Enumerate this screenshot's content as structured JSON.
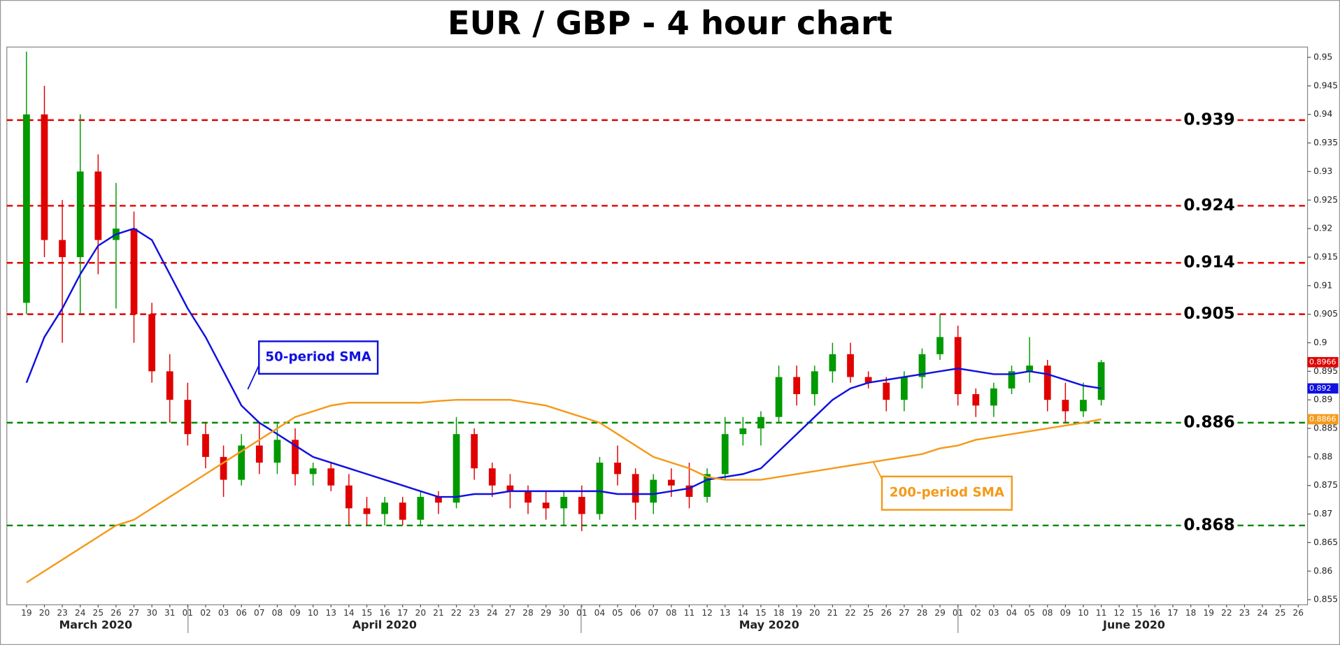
{
  "chart_data": {
    "type": "candlestick",
    "title": "EUR / GBP - 4 hour chart",
    "categories": [
      "19",
      "20",
      "23",
      "24",
      "25",
      "26",
      "27",
      "30",
      "31",
      "01",
      "02",
      "03",
      "06",
      "07",
      "08",
      "09",
      "10",
      "13",
      "14",
      "15",
      "16",
      "17",
      "20",
      "21",
      "22",
      "23",
      "24",
      "27",
      "28",
      "29",
      "30",
      "01",
      "04",
      "05",
      "06",
      "07",
      "08",
      "11",
      "12",
      "13",
      "14",
      "15",
      "18",
      "19",
      "20",
      "21",
      "22",
      "25",
      "26",
      "27",
      "28",
      "29",
      "01",
      "02",
      "03",
      "04",
      "05",
      "08",
      "09",
      "10",
      "11",
      "12",
      "15",
      "16",
      "17",
      "18",
      "19",
      "22",
      "23",
      "24",
      "25",
      "26"
    ],
    "months": [
      "March 2020",
      "April 2020",
      "May 2020",
      "June 2020"
    ],
    "open": [
      0.907,
      0.94,
      0.918,
      0.915,
      0.93,
      0.918,
      0.92,
      0.905,
      0.895,
      0.89,
      0.884,
      0.88,
      0.876,
      0.882,
      0.879,
      0.883,
      0.877,
      0.878,
      0.875,
      0.871,
      0.87,
      0.872,
      0.869,
      0.873,
      0.872,
      0.884,
      0.878,
      0.875,
      0.874,
      0.872,
      0.871,
      0.873,
      0.87,
      0.879,
      0.877,
      0.872,
      0.876,
      0.875,
      0.873,
      0.877,
      0.884,
      0.885,
      0.887,
      0.894,
      0.891,
      0.895,
      0.898,
      0.894,
      0.893,
      0.89,
      0.894,
      0.898,
      0.901,
      0.891,
      0.889,
      0.892,
      0.895,
      0.896,
      0.89,
      0.888,
      0.89,
      null,
      null,
      null,
      null,
      null,
      null,
      null,
      null,
      null,
      null,
      null
    ],
    "high": [
      0.951,
      0.945,
      0.925,
      0.94,
      0.933,
      0.928,
      0.923,
      0.907,
      0.898,
      0.893,
      0.886,
      0.882,
      0.884,
      0.886,
      0.886,
      0.885,
      0.879,
      0.879,
      0.877,
      0.873,
      0.873,
      0.873,
      0.874,
      0.874,
      0.887,
      0.885,
      0.879,
      0.877,
      0.875,
      0.874,
      0.874,
      0.875,
      0.88,
      0.882,
      0.878,
      0.877,
      0.878,
      0.879,
      0.878,
      0.887,
      0.887,
      0.888,
      0.896,
      0.896,
      0.896,
      0.9,
      0.9,
      0.895,
      0.894,
      0.895,
      0.899,
      0.905,
      0.903,
      0.892,
      0.893,
      0.896,
      0.901,
      0.897,
      0.893,
      0.893,
      0.897,
      null,
      null,
      null,
      null,
      null,
      null,
      null,
      null,
      null,
      null,
      null
    ],
    "low": [
      0.905,
      0.915,
      0.9,
      0.905,
      0.912,
      0.906,
      0.9,
      0.893,
      0.886,
      0.882,
      0.878,
      0.873,
      0.875,
      0.877,
      0.877,
      0.875,
      0.875,
      0.874,
      0.868,
      0.868,
      0.868,
      0.868,
      0.868,
      0.87,
      0.871,
      0.876,
      0.873,
      0.871,
      0.87,
      0.869,
      0.868,
      0.867,
      0.869,
      0.875,
      0.869,
      0.87,
      0.873,
      0.871,
      0.872,
      0.876,
      0.882,
      0.882,
      0.886,
      0.889,
      0.889,
      0.893,
      0.893,
      0.892,
      0.888,
      0.888,
      0.892,
      0.897,
      0.889,
      0.887,
      0.887,
      0.891,
      0.893,
      0.888,
      0.886,
      0.887,
      0.889,
      null,
      null,
      null,
      null,
      null,
      null,
      null,
      null,
      null,
      null,
      null
    ],
    "close": [
      0.94,
      0.918,
      0.915,
      0.93,
      0.918,
      0.92,
      0.905,
      0.895,
      0.89,
      0.884,
      0.88,
      0.876,
      0.882,
      0.879,
      0.883,
      0.877,
      0.878,
      0.875,
      0.871,
      0.87,
      0.872,
      0.869,
      0.873,
      0.872,
      0.884,
      0.878,
      0.875,
      0.874,
      0.872,
      0.871,
      0.873,
      0.87,
      0.879,
      0.877,
      0.872,
      0.876,
      0.875,
      0.873,
      0.877,
      0.884,
      0.885,
      0.887,
      0.894,
      0.891,
      0.895,
      0.898,
      0.894,
      0.893,
      0.89,
      0.894,
      0.898,
      0.901,
      0.891,
      0.889,
      0.892,
      0.895,
      0.896,
      0.89,
      0.888,
      0.89,
      0.8966,
      null,
      null,
      null,
      null,
      null,
      null,
      null,
      null,
      null,
      null,
      null
    ],
    "up_color": "#009900",
    "down_color": "#e00000",
    "series": [
      {
        "name": "50-period SMA",
        "color": "#1010e0",
        "values": [
          0.893,
          0.901,
          0.906,
          0.912,
          0.917,
          0.919,
          0.92,
          0.918,
          0.912,
          0.906,
          0.901,
          0.895,
          0.889,
          0.886,
          0.884,
          0.882,
          0.88,
          0.879,
          0.878,
          0.877,
          0.876,
          0.875,
          0.874,
          0.873,
          0.873,
          0.8735,
          0.8735,
          0.874,
          0.874,
          0.874,
          0.874,
          0.874,
          0.874,
          0.8735,
          0.8735,
          0.8735,
          0.874,
          0.8745,
          0.876,
          0.8765,
          0.877,
          0.878,
          0.881,
          0.884,
          0.887,
          0.89,
          0.892,
          0.893,
          0.8935,
          0.894,
          0.8945,
          0.895,
          0.8955,
          0.895,
          0.8945,
          0.8945,
          0.895,
          0.8945,
          0.8935,
          0.8925,
          0.892,
          null,
          null,
          null,
          null,
          null,
          null,
          null,
          null,
          null,
          null,
          null
        ]
      },
      {
        "name": "200-period SMA",
        "color": "#f59a1a",
        "values": [
          0.858,
          0.86,
          0.862,
          0.864,
          0.866,
          0.868,
          0.869,
          0.871,
          0.873,
          0.875,
          0.877,
          0.879,
          0.881,
          0.883,
          0.885,
          0.887,
          0.888,
          0.889,
          0.8895,
          0.8895,
          0.8895,
          0.8895,
          0.8895,
          0.8898,
          0.89,
          0.89,
          0.89,
          0.89,
          0.8895,
          0.889,
          0.888,
          0.887,
          0.886,
          0.884,
          0.882,
          0.88,
          0.879,
          0.878,
          0.8765,
          0.876,
          0.876,
          0.876,
          0.8765,
          0.877,
          0.8775,
          0.878,
          0.8785,
          0.879,
          0.8795,
          0.88,
          0.8805,
          0.8815,
          0.882,
          0.883,
          0.8835,
          0.884,
          0.8845,
          0.885,
          0.8855,
          0.886,
          0.8866,
          null,
          null,
          null,
          null,
          null,
          null,
          null,
          null,
          null,
          null,
          null
        ]
      }
    ],
    "levels": [
      {
        "value": 0.939,
        "color": "#e00000"
      },
      {
        "value": 0.924,
        "color": "#e00000"
      },
      {
        "value": 0.914,
        "color": "#e00000"
      },
      {
        "value": 0.905,
        "color": "#e00000"
      },
      {
        "value": 0.886,
        "color": "#008800"
      },
      {
        "value": 0.868,
        "color": "#008800"
      }
    ],
    "price_tags": [
      {
        "value": 0.8966,
        "color": "#e00000"
      },
      {
        "value": 0.892,
        "color": "#1010e0"
      },
      {
        "value": 0.8866,
        "color": "#f59a1a"
      }
    ],
    "ylim": [
      0.8541,
      0.9518
    ],
    "yticks": [
      0.855,
      0.86,
      0.865,
      0.87,
      0.875,
      0.88,
      0.885,
      0.89,
      0.895,
      0.9,
      0.905,
      0.91,
      0.915,
      0.92,
      0.925,
      0.93,
      0.935,
      0.94,
      0.945,
      0.95
    ]
  }
}
